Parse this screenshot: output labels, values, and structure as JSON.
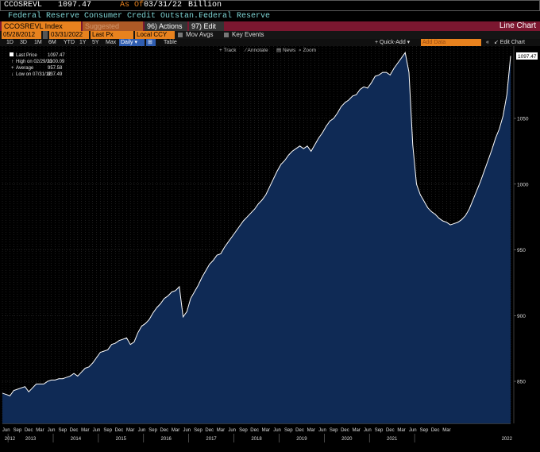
{
  "header": {
    "ticker": "CCOSREVL",
    "last_value": "1097.47",
    "as_of_label": "As Of",
    "as_of_date": "03/31/22",
    "unit": "Billion",
    "description": "Federal Reserve Consumer Credit Outstan...",
    "source": "Federal Reserve"
  },
  "toolbar": {
    "security": "CCOSREVL Index",
    "suggested": "Suggested Charts",
    "actions": "96) Actions ▾",
    "edit": "97) Edit ▾",
    "chart_type": "Line Chart",
    "start_date": "05/28/2012",
    "end_date": "03/31/2022",
    "field": "Last Px",
    "currency": "Local CCY",
    "mov_avgs": "Mov Avgs",
    "key_events": "Key Events",
    "ranges": [
      "1D",
      "3D",
      "1M",
      "6M",
      "YTD",
      "1Y",
      "5Y",
      "Max"
    ],
    "frequency": "Daily ▾",
    "table": "Table",
    "track": "Track",
    "annotate": "Annotate",
    "news": "News",
    "zoom": "Zoom",
    "quick_add": "+ Quick-Add ▾",
    "add_data": "Add Data",
    "edit_chart": "↙ Edit Chart"
  },
  "legend": {
    "last_price_label": "Last Price",
    "last_price_value": "1097.47",
    "high_label": "High on 02/29/20",
    "high_value": "1100.09",
    "average_label": "Average",
    "average_value": "957.58",
    "low_label": "Low on 07/31/12",
    "low_value": "837.49"
  },
  "colors": {
    "area_fill": "#0f2a55",
    "line": "#ffffff",
    "grid": "#3b3b3b",
    "header_bar": "#7b1730",
    "field_orange": "#e8821e",
    "header_cyan": "#7fd6d6",
    "accent_blue": "#2f5db0"
  },
  "chart_data": {
    "type": "area",
    "title": "",
    "xlabel": "",
    "ylabel": "",
    "ylim": [
      818,
      1105
    ],
    "yticks": [
      850,
      900,
      950,
      1000,
      1050
    ],
    "grid": true,
    "legend_position": "top-left",
    "x_month_labels": [
      "Jun",
      "Sep",
      "Dec",
      "Mar",
      "Jun",
      "Sep",
      "Dec",
      "Mar",
      "Jun",
      "Sep",
      "Dec",
      "Mar",
      "Jun",
      "Sep",
      "Dec",
      "Mar",
      "Jun",
      "Sep",
      "Dec",
      "Mar",
      "Jun",
      "Sep",
      "Dec",
      "Mar",
      "Jun",
      "Sep",
      "Dec",
      "Mar",
      "Jun",
      "Sep",
      "Dec",
      "Mar",
      "Jun",
      "Sep",
      "Dec",
      "Mar",
      "Jun",
      "Sep",
      "Dec",
      "Mar"
    ],
    "x_year_labels": [
      "2012",
      "2013",
      "2014",
      "2015",
      "2016",
      "2017",
      "2018",
      "2019",
      "2020",
      "2021",
      "2022"
    ],
    "series": [
      {
        "name": "Last Price",
        "start": "2012-05",
        "frequency": "monthly",
        "values": [
          841,
          840,
          839,
          843,
          844,
          845,
          846,
          842,
          845,
          848,
          848,
          848,
          850,
          851,
          851,
          852,
          852,
          853,
          854,
          856,
          854,
          857,
          860,
          861,
          864,
          868,
          872,
          873,
          874,
          878,
          879,
          881,
          882,
          883,
          878,
          880,
          887,
          892,
          894,
          897,
          902,
          906,
          909,
          913,
          915,
          918,
          919,
          922,
          899,
          903,
          913,
          918,
          923,
          929,
          934,
          939,
          942,
          946,
          947,
          952,
          956,
          960,
          964,
          968,
          972,
          975,
          978,
          981,
          985,
          988,
          992,
          998,
          1004,
          1010,
          1015,
          1018,
          1022,
          1025,
          1027,
          1029,
          1027,
          1029,
          1025,
          1030,
          1035,
          1039,
          1044,
          1048,
          1050,
          1054,
          1059,
          1062,
          1064,
          1067,
          1068,
          1072,
          1074,
          1073,
          1077,
          1082,
          1083,
          1085,
          1085,
          1083,
          1088,
          1092,
          1096,
          1100,
          1085,
          1030,
          1000,
          992,
          987,
          982,
          979,
          977,
          974,
          972,
          971,
          969,
          970,
          971,
          973,
          976,
          981,
          988,
          995,
          1002,
          1010,
          1018,
          1026,
          1035,
          1042,
          1052,
          1068,
          1097.47
        ]
      }
    ]
  }
}
